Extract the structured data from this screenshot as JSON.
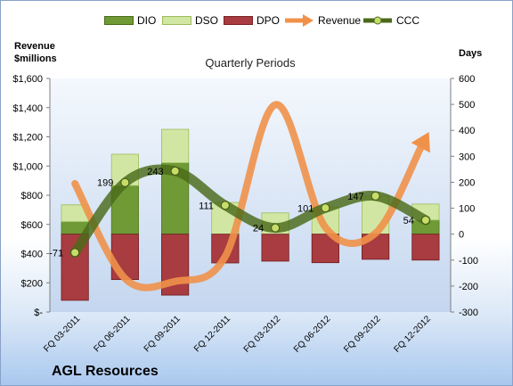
{
  "company": "AGL Resources",
  "left_axis_title": [
    "Revenue",
    "$millions"
  ],
  "right_axis_title": "Days",
  "chart_data": {
    "type": "bar",
    "title": "Quarterly Periods",
    "categories": [
      "FQ 03-2011",
      "FQ 06-2011",
      "FQ 09-2011",
      "FQ 12-2011",
      "FQ 03-2012",
      "FQ 06-2012",
      "FQ 09-2012",
      "FQ 12-2012"
    ],
    "series": [
      {
        "name": "DIO",
        "axis": "days",
        "kind": "stacked-bar",
        "color": "#6f9a35",
        "values": [
          48,
          187,
          275,
          0,
          0,
          0,
          0,
          54
        ]
      },
      {
        "name": "DSO",
        "axis": "days",
        "kind": "stacked-bar",
        "color": "#d2e6a4",
        "values": [
          65,
          121,
          129,
          122,
          82,
          105,
          147,
          62
        ]
      },
      {
        "name": "DPO",
        "axis": "days",
        "kind": "stacked-bar",
        "color": "#a93c40",
        "values": [
          -255,
          -175,
          -235,
          -111,
          -104,
          -110,
          -97,
          -100
        ]
      },
      {
        "name": "Revenue",
        "axis": "revenue",
        "kind": "line",
        "color": "#f0914a",
        "values": [
          880,
          230,
          210,
          380,
          1420,
          580,
          540,
          1190
        ]
      },
      {
        "name": "CCC",
        "axis": "days",
        "kind": "line",
        "color": "#4a6a1a",
        "values": [
          -71,
          199,
          243,
          111,
          24,
          101,
          147,
          54
        ]
      }
    ],
    "ccc_labels": [
      "-71",
      "199",
      "243",
      "111",
      "24",
      "101",
      "147",
      "54"
    ],
    "left_axis": {
      "ylim": [
        0,
        1600
      ],
      "ticks": [
        "$-",
        "$200",
        "$400",
        "$600",
        "$800",
        "$1,000",
        "$1,200",
        "$1,400",
        "$1,600"
      ]
    },
    "right_axis": {
      "ylim": [
        -300,
        600
      ],
      "ticks": [
        "-300",
        "-200",
        "-100",
        "0",
        "100",
        "200",
        "300",
        "400",
        "500",
        "600"
      ]
    },
    "grid": false,
    "legend_position": "top"
  }
}
